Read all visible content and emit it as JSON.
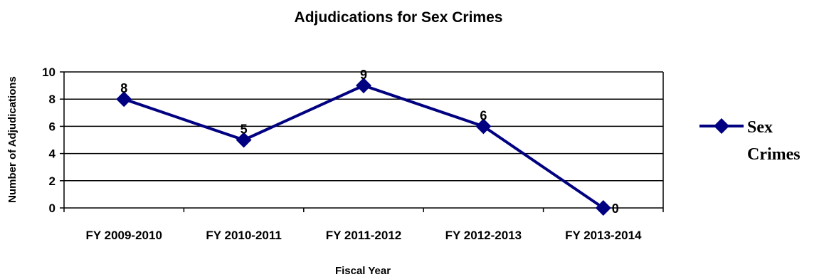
{
  "chart_data": {
    "type": "line",
    "title": "Adjudications for Sex Crimes",
    "xlabel": "Fiscal Year",
    "ylabel": "Number of Adjudications",
    "categories": [
      "FY 2009-2010",
      "FY 2010-2011",
      "FY 2011-2012",
      "FY 2012-2013",
      "FY 2013-2014"
    ],
    "series": [
      {
        "name": "Sex Crimes",
        "values": [
          8,
          5,
          9,
          6,
          0
        ],
        "color": "#000080",
        "marker": "diamond"
      }
    ],
    "yticks": [
      "0",
      "2",
      "4",
      "6",
      "8",
      "10"
    ],
    "ylim": [
      0,
      10
    ],
    "grid": true,
    "data_labels": true,
    "legend_position": "right",
    "legend_lines": [
      "Sex",
      "Crimes"
    ]
  }
}
